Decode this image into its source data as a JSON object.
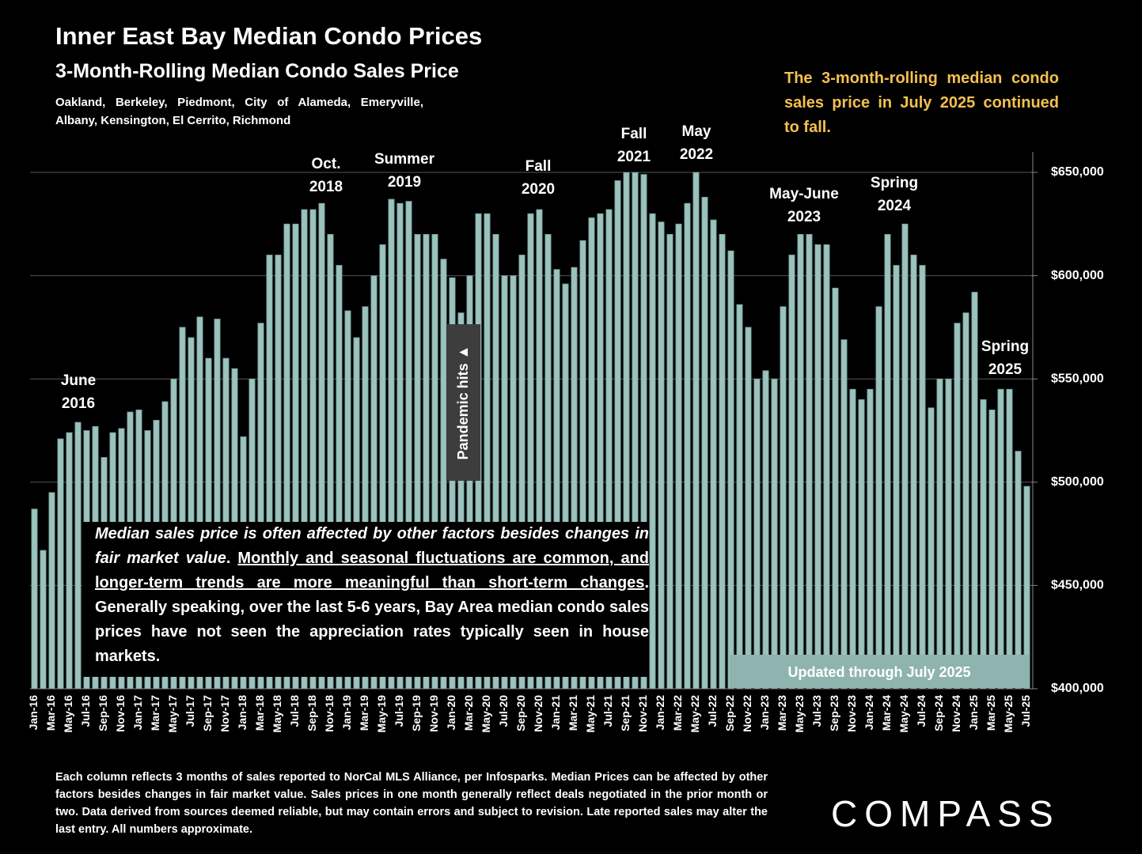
{
  "chart_data": {
    "type": "bar",
    "title": "Inner East Bay Median Condo Prices",
    "subtitle": "3-Month-Rolling Median Condo Sales Price",
    "cities": "Oakland, Berkeley, Piedmont, City of Alameda, Emeryville, Albany, Kensington, El Cerrito, Richmond",
    "side_note": "The 3-month-rolling median condo sales price in July 2025 continued to fall.",
    "categories": [
      "Jan-16",
      null,
      "Mar-16",
      null,
      "May-16",
      null,
      "Jul-16",
      null,
      "Sep-16",
      null,
      "Nov-16",
      null,
      "Jan-17",
      null,
      "Mar-17",
      null,
      "May-17",
      null,
      "Jul-17",
      null,
      "Sep-17",
      null,
      "Nov-17",
      null,
      "Jan-18",
      null,
      "Mar-18",
      null,
      "May-18",
      null,
      "Jul-18",
      null,
      "Sep-18",
      null,
      "Nov-18",
      null,
      "Jan-19",
      null,
      "Mar-19",
      null,
      "May-19",
      null,
      "Jul-19",
      null,
      "Sep-19",
      null,
      "Nov-19",
      null,
      "Jan-20",
      null,
      "Mar-20",
      null,
      "May-20",
      null,
      "Jul-20",
      null,
      "Sep-20",
      null,
      "Nov-20",
      null,
      "Jan-21",
      null,
      "Mar-21",
      null,
      "May-21",
      null,
      "Jul-21",
      null,
      "Sep-21",
      null,
      "Nov-21",
      null,
      "Jan-22",
      null,
      "Mar-22",
      null,
      "May-22",
      null,
      "Jul-22",
      null,
      "Sep-22",
      null,
      "Nov-22",
      null,
      "Jan-23",
      null,
      "Mar-23",
      null,
      "May-23",
      null,
      "Jul-23",
      null,
      "Sep-23",
      null,
      "Nov-23",
      null,
      "Jan-24",
      null,
      "Mar-24",
      null,
      "May-24",
      null,
      "Jul-24",
      null,
      "Sep-24",
      null,
      "Nov-24",
      null,
      "Jan-25",
      null,
      "Mar-25",
      null,
      "May-25",
      null,
      "Jul-25"
    ],
    "values": [
      487000,
      467000,
      495000,
      521000,
      524000,
      529000,
      525000,
      527000,
      512000,
      524000,
      526000,
      534000,
      535000,
      525000,
      530000,
      539000,
      550000,
      575000,
      570000,
      580000,
      560000,
      579000,
      560000,
      555000,
      522000,
      550000,
      577000,
      610000,
      610000,
      625000,
      625000,
      632000,
      632000,
      635000,
      620000,
      605000,
      583000,
      570000,
      585000,
      600000,
      615000,
      637000,
      635000,
      636000,
      620000,
      620000,
      620000,
      608000,
      599000,
      582000,
      600000,
      630000,
      630000,
      620000,
      600000,
      600000,
      610000,
      630000,
      632000,
      620000,
      603000,
      596000,
      604000,
      617000,
      628000,
      630000,
      632000,
      646000,
      650000,
      650000,
      649000,
      630000,
      626000,
      620000,
      625000,
      635000,
      650000,
      638000,
      627000,
      620000,
      612000,
      586000,
      575000,
      550000,
      554000,
      550000,
      585000,
      610000,
      620000,
      620000,
      615000,
      615000,
      594000,
      569000,
      545000,
      540000,
      545000,
      585000,
      620000,
      605000,
      625000,
      610000,
      605000,
      536000,
      550000,
      550000,
      577000,
      582000,
      592000,
      540000,
      535000,
      545000,
      545000,
      515000,
      498000
    ],
    "color": "#9cc2be",
    "ylim": [
      400000,
      650000
    ],
    "yticks": [
      {
        "value": 400000,
        "label": "$400,000"
      },
      {
        "value": 450000,
        "label": "$450,000"
      },
      {
        "value": 500000,
        "label": "$500,000"
      },
      {
        "value": 550000,
        "label": "$550,000"
      },
      {
        "value": 600000,
        "label": "$600,000"
      },
      {
        "value": 650000,
        "label": "$650,000"
      }
    ],
    "grid": true,
    "annotations": [
      [
        "June",
        "2016"
      ],
      [
        "Oct.",
        "2018"
      ],
      [
        "Summer",
        "2019"
      ],
      [
        "Fall",
        "2020"
      ],
      [
        "Fall",
        "2021"
      ],
      [
        "May",
        "2022"
      ],
      [
        "May-June",
        "2023"
      ],
      [
        "Spring",
        "2024"
      ],
      [
        "Spring",
        "2025"
      ]
    ],
    "pandemic": "Pandemic hits ▲",
    "note_parts": [
      "Median sales price is often affected by other factors besides changes in fair market value",
      ". ",
      "Monthly and seasonal fluctuations are common, and longer-term trends are more meaningful than short-term changes",
      ". Generally speaking, over the last 5-6 years, Bay Area median condo sales prices have not seen the appreciation rates typically seen in house markets."
    ],
    "updated": "Updated through July 2025",
    "footnote": "Each column reflects 3 months of sales reported to NorCal MLS Alliance, per Infosparks. Median Prices can be affected by other factors besides changes in fair market value. Sales prices in one month generally reflect deals negotiated in the prior month or two. Data derived from sources deemed reliable, but may contain errors and subject to revision. Late reported sales may alter the last entry. All numbers approximate.",
    "logo": "COMPASS"
  }
}
